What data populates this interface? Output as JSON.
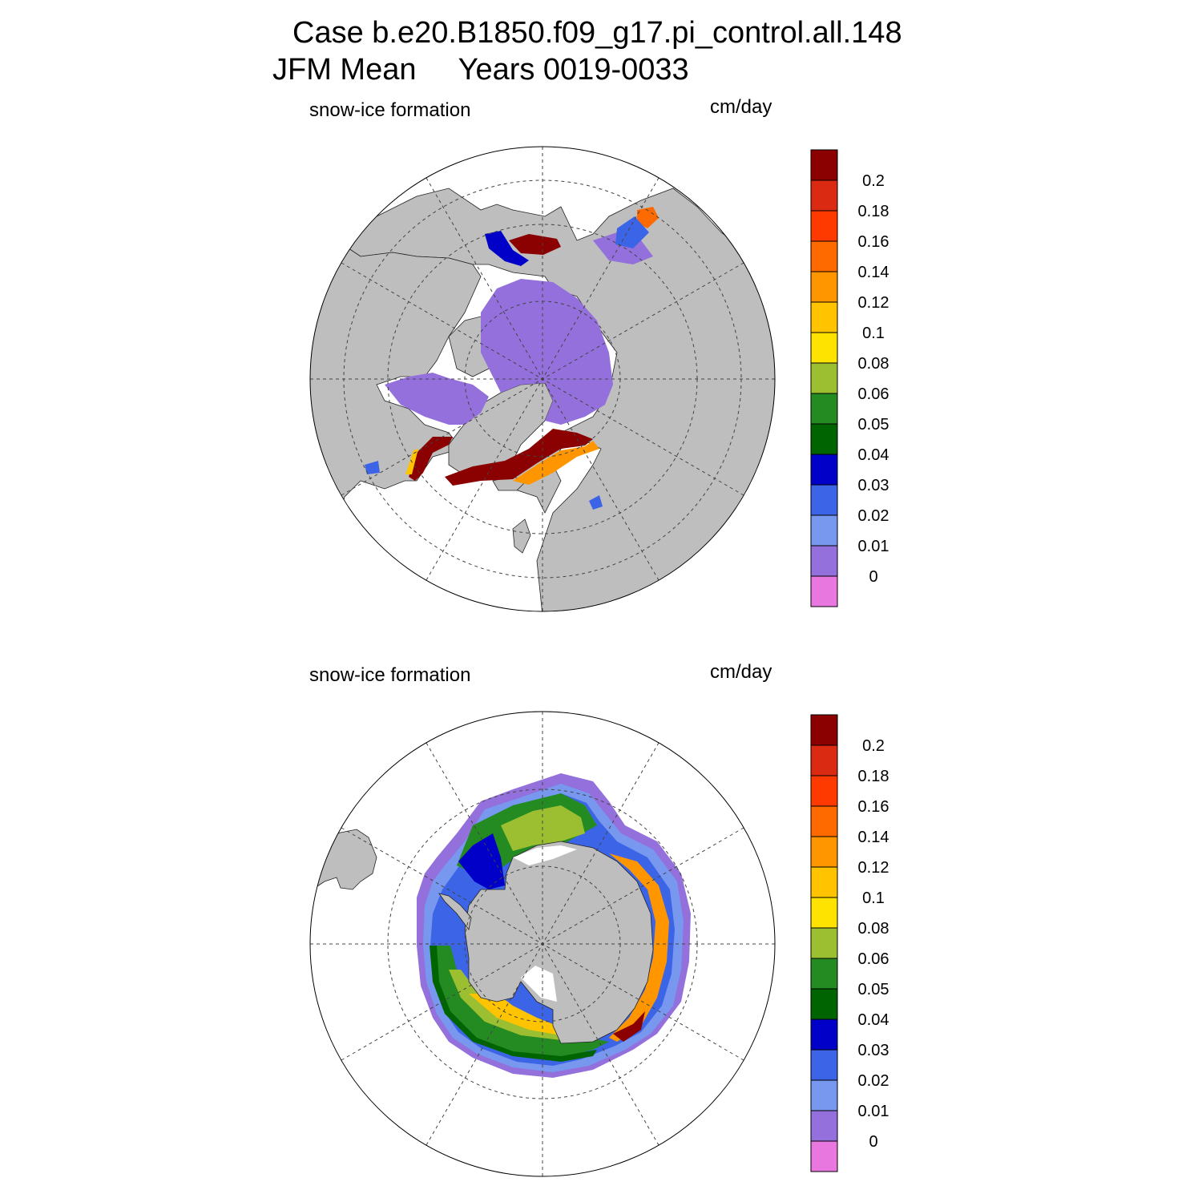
{
  "header": {
    "case_line": "Case b.e20.B1850.f09_g17.pi_control.all.148",
    "period_line": "JFM Mean     Years 0019-0033"
  },
  "panels": [
    {
      "hemisphere": "north",
      "left_label": "snow-ice formation",
      "right_label": "cm/day"
    },
    {
      "hemisphere": "south",
      "left_label": "snow-ice formation",
      "right_label": "cm/day"
    }
  ],
  "colorbar": {
    "colors": [
      "#8b0000",
      "#db2a12",
      "#ff3a00",
      "#ff6a00",
      "#ff9600",
      "#ffc300",
      "#ffe300",
      "#9cbf32",
      "#238b22",
      "#006400",
      "#0000c8",
      "#3c64e6",
      "#7898f0",
      "#9370db",
      "#e878e0"
    ],
    "labels": [
      "0.2",
      "0.18",
      "0.16",
      "0.14",
      "0.12",
      "0.1",
      "0.08",
      "0.06",
      "0.05",
      "0.04",
      "0.03",
      "0.02",
      "0.01",
      "0"
    ]
  },
  "style": {
    "land": "#bebebe",
    "ocean_bg": "#ffffff",
    "grid_line": "#444444"
  }
}
